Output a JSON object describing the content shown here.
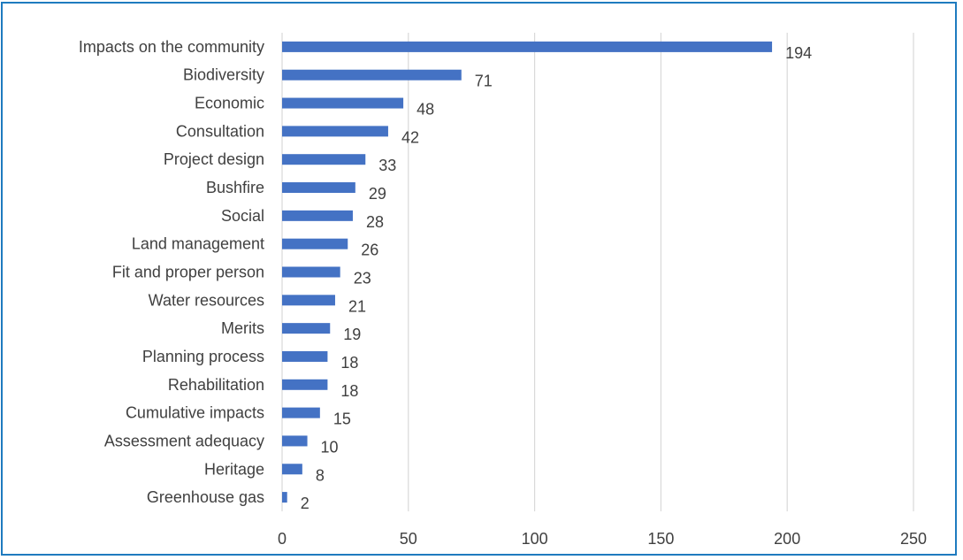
{
  "chart_data": {
    "type": "bar",
    "orientation": "horizontal",
    "title": "",
    "xlabel": "",
    "ylabel": "",
    "xlim": [
      0,
      250
    ],
    "x_ticks": [
      0,
      50,
      100,
      150,
      200,
      250
    ],
    "grid": "vertical",
    "legend": "none",
    "bar_color": "#4472c4",
    "grid_color": "#d9d9d9",
    "categories": [
      "Impacts on the community",
      "Biodiversity",
      "Economic",
      "Consultation",
      "Project design",
      "Bushfire",
      "Social",
      "Land management",
      "Fit and proper person",
      "Water resources",
      "Merits",
      "Planning process",
      "Rehabilitation",
      "Cumulative impacts",
      "Assessment adequacy",
      "Heritage",
      "Greenhouse gas"
    ],
    "values": [
      194,
      71,
      48,
      42,
      33,
      29,
      28,
      26,
      23,
      21,
      19,
      18,
      18,
      15,
      10,
      8,
      2
    ]
  }
}
